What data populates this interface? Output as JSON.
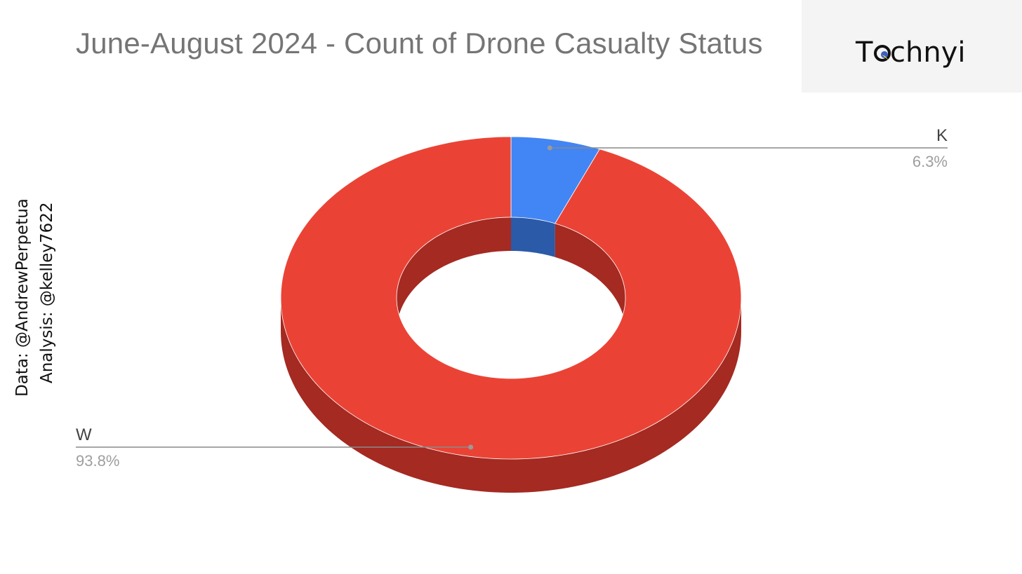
{
  "title": "June-August 2024 - Count of Drone Casualty Status",
  "logo": {
    "text": "Technyi",
    "text_before": "T",
    "text_after": "chnyi",
    "accent_colors": [
      "#1a1a1a",
      "#f0d32a",
      "#3a5fc4"
    ]
  },
  "credits": {
    "data_line": "Data: @AndrewPerpetua",
    "analysis_line": "Analysis: @kelley7622"
  },
  "chart_data": {
    "type": "pie",
    "style": "3d-donut",
    "title": "June-August 2024 - Count of Drone Casualty Status",
    "slices": [
      {
        "label": "K",
        "percent": 6.3,
        "percent_label": "6.3%",
        "color": "#4285f4",
        "side_color": "#2b5aa8"
      },
      {
        "label": "W",
        "percent": 93.8,
        "percent_label": "93.8%",
        "color": "#ea4335",
        "side_color": "#a42a22"
      }
    ],
    "legend": "none"
  }
}
